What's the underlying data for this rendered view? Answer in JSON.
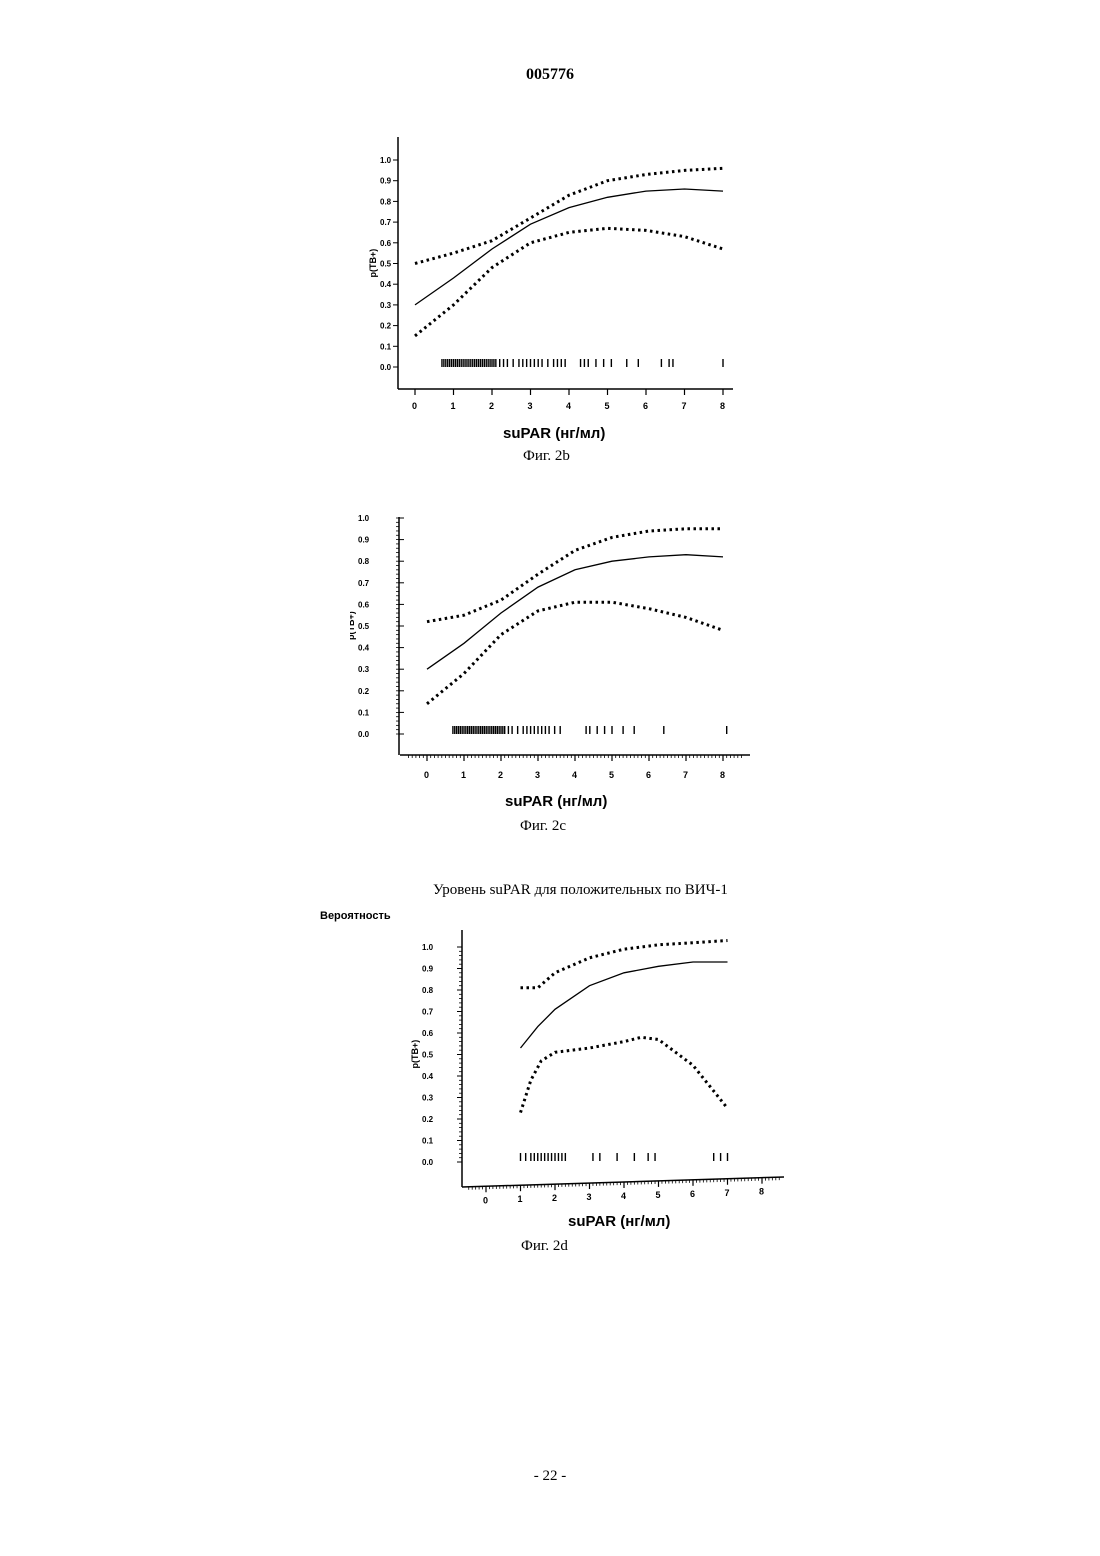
{
  "document": {
    "number": "005776",
    "page_number": "- 22 -"
  },
  "section_heading": "Уровень suPAR для положительных по ВИЧ-1",
  "probability_label": "Вероятность",
  "chart_data": [
    {
      "type": "line",
      "id": "fig2b",
      "caption": "Фиг. 2b",
      "xlabel": "suPAR (нг/мл)",
      "ylabel": "p(TB+)",
      "xlim": [
        0,
        8
      ],
      "ylim": [
        0,
        1
      ],
      "x_ticks": [
        "0",
        "1",
        "2",
        "3",
        "4",
        "5",
        "6",
        "7",
        "8"
      ],
      "y_ticks": [
        "0.0",
        "0.1",
        "0.2",
        "0.3",
        "0.4",
        "0.5",
        "0.6",
        "0.7",
        "0.8",
        "0.9",
        "1.0"
      ],
      "series": [
        {
          "style": "solid",
          "points": [
            [
              0,
              0.3
            ],
            [
              1,
              0.43
            ],
            [
              2,
              0.57
            ],
            [
              3,
              0.69
            ],
            [
              4,
              0.77
            ],
            [
              5,
              0.82
            ],
            [
              6,
              0.85
            ],
            [
              7,
              0.86
            ],
            [
              8,
              0.85
            ]
          ]
        },
        {
          "style": "dotted",
          "points": [
            [
              0,
              0.5
            ],
            [
              1,
              0.55
            ],
            [
              2,
              0.61
            ],
            [
              3,
              0.72
            ],
            [
              4,
              0.83
            ],
            [
              5,
              0.9
            ],
            [
              6,
              0.93
            ],
            [
              7,
              0.95
            ],
            [
              8,
              0.96
            ]
          ]
        },
        {
          "style": "dotted",
          "points": [
            [
              0,
              0.15
            ],
            [
              1,
              0.3
            ],
            [
              2,
              0.48
            ],
            [
              3,
              0.6
            ],
            [
              4,
              0.65
            ],
            [
              5,
              0.67
            ],
            [
              6,
              0.66
            ],
            [
              7,
              0.63
            ],
            [
              8,
              0.57
            ]
          ]
        }
      ],
      "rug": [
        0.7,
        0.75,
        0.8,
        0.85,
        0.9,
        0.95,
        1.0,
        1.05,
        1.1,
        1.15,
        1.2,
        1.25,
        1.3,
        1.35,
        1.4,
        1.45,
        1.5,
        1.55,
        1.6,
        1.65,
        1.7,
        1.75,
        1.8,
        1.85,
        1.9,
        1.95,
        2.0,
        2.05,
        2.1,
        2.2,
        2.3,
        2.4,
        2.55,
        2.7,
        2.8,
        2.9,
        3.0,
        3.1,
        3.2,
        3.3,
        3.45,
        3.6,
        3.7,
        3.8,
        3.9,
        4.3,
        4.4,
        4.5,
        4.7,
        4.9,
        5.1,
        5.5,
        5.8,
        6.4,
        6.6,
        6.7,
        8.0
      ]
    },
    {
      "type": "line",
      "id": "fig2c",
      "caption": "Фиг. 2c",
      "xlabel": "suPAR (нг/мл)",
      "ylabel": "p(TB+)",
      "xlim": [
        0,
        8
      ],
      "ylim": [
        0,
        1
      ],
      "x_ticks": [
        "0",
        "1",
        "2",
        "3",
        "4",
        "5",
        "6",
        "7",
        "8"
      ],
      "y_ticks": [
        "0.0",
        "0.1",
        "0.2",
        "0.3",
        "0.4",
        "0.5",
        "0.6",
        "0.7",
        "0.8",
        "0.9",
        "1.0"
      ],
      "series": [
        {
          "style": "solid",
          "points": [
            [
              0,
              0.3
            ],
            [
              1,
              0.42
            ],
            [
              2,
              0.56
            ],
            [
              3,
              0.68
            ],
            [
              4,
              0.76
            ],
            [
              5,
              0.8
            ],
            [
              6,
              0.82
            ],
            [
              7,
              0.83
            ],
            [
              8,
              0.82
            ]
          ]
        },
        {
          "style": "dotted",
          "points": [
            [
              0,
              0.52
            ],
            [
              1,
              0.55
            ],
            [
              2,
              0.62
            ],
            [
              3,
              0.74
            ],
            [
              4,
              0.85
            ],
            [
              5,
              0.91
            ],
            [
              6,
              0.94
            ],
            [
              7,
              0.95
            ],
            [
              8,
              0.95
            ]
          ]
        },
        {
          "style": "dotted",
          "points": [
            [
              0,
              0.14
            ],
            [
              1,
              0.28
            ],
            [
              2,
              0.46
            ],
            [
              3,
              0.57
            ],
            [
              4,
              0.61
            ],
            [
              5,
              0.61
            ],
            [
              6,
              0.58
            ],
            [
              7,
              0.54
            ],
            [
              8,
              0.48
            ]
          ]
        }
      ],
      "rug": [
        0.7,
        0.75,
        0.8,
        0.85,
        0.9,
        0.95,
        1.0,
        1.05,
        1.1,
        1.15,
        1.2,
        1.25,
        1.3,
        1.35,
        1.4,
        1.45,
        1.5,
        1.55,
        1.6,
        1.65,
        1.7,
        1.75,
        1.8,
        1.85,
        1.9,
        1.95,
        2.0,
        2.05,
        2.1,
        2.2,
        2.3,
        2.45,
        2.6,
        2.7,
        2.8,
        2.9,
        3.0,
        3.1,
        3.2,
        3.3,
        3.45,
        3.6,
        4.3,
        4.4,
        4.6,
        4.8,
        5.0,
        5.3,
        5.6,
        6.4,
        8.1
      ]
    },
    {
      "type": "line",
      "id": "fig2d",
      "caption": "Фиг. 2d",
      "xlabel": "suPAR (нг/мл)",
      "ylabel": "p(TB+)",
      "xlim": [
        0,
        8
      ],
      "ylim": [
        0,
        1
      ],
      "x_ticks": [
        "0",
        "1",
        "2",
        "3",
        "4",
        "5",
        "6",
        "7",
        "8"
      ],
      "y_ticks": [
        "0.0",
        "0.1",
        "0.2",
        "0.3",
        "0.4",
        "0.5",
        "0.6",
        "0.7",
        "0.8",
        "0.9",
        "1.0"
      ],
      "series": [
        {
          "style": "solid",
          "points": [
            [
              1,
              0.53
            ],
            [
              1.5,
              0.63
            ],
            [
              2,
              0.71
            ],
            [
              3,
              0.82
            ],
            [
              4,
              0.88
            ],
            [
              5,
              0.91
            ],
            [
              6,
              0.93
            ],
            [
              7,
              0.93
            ]
          ]
        },
        {
          "style": "dotted",
          "points": [
            [
              1,
              0.81
            ],
            [
              1.5,
              0.81
            ],
            [
              2,
              0.88
            ],
            [
              3,
              0.95
            ],
            [
              4,
              0.99
            ],
            [
              5,
              1.01
            ],
            [
              6,
              1.02
            ],
            [
              7,
              1.03
            ]
          ]
        },
        {
          "style": "dotted",
          "points": [
            [
              1,
              0.23
            ],
            [
              1.3,
              0.38
            ],
            [
              1.6,
              0.47
            ],
            [
              2,
              0.51
            ],
            [
              3,
              0.53
            ],
            [
              4,
              0.56
            ],
            [
              4.5,
              0.58
            ],
            [
              5,
              0.57
            ],
            [
              6,
              0.45
            ],
            [
              7,
              0.25
            ]
          ]
        }
      ],
      "rug": [
        1.0,
        1.15,
        1.3,
        1.4,
        1.5,
        1.6,
        1.7,
        1.8,
        1.9,
        2.0,
        2.1,
        2.2,
        2.3,
        3.1,
        3.3,
        3.8,
        4.3,
        4.7,
        4.9,
        6.6,
        6.8,
        7.0
      ]
    }
  ]
}
